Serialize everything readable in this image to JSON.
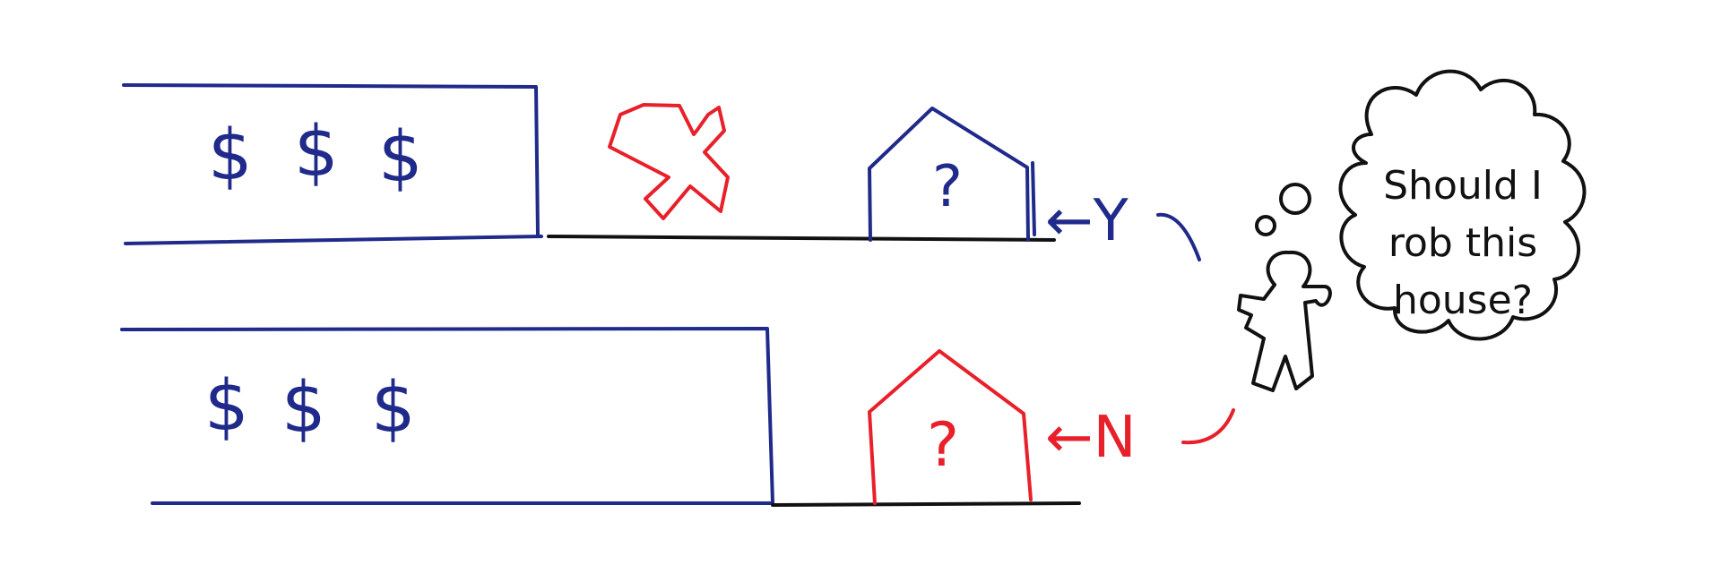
{
  "colors": {
    "blue": "#1f2a8a",
    "red": "#e8202a",
    "black": "#111111"
  },
  "top_row": {
    "money_symbols": [
      "$",
      "$",
      "$"
    ],
    "house_mark": "?",
    "arrow_label": "←Y"
  },
  "bottom_row": {
    "money_symbols": [
      "$",
      "$",
      "$"
    ],
    "house_mark": "?",
    "arrow_label": "←N"
  },
  "thought": {
    "lines": [
      "Should I",
      "rob this",
      "house?"
    ]
  },
  "icons": {
    "cross": "cross-icon",
    "person": "person-icon",
    "cloud": "thought-cloud-icon"
  }
}
